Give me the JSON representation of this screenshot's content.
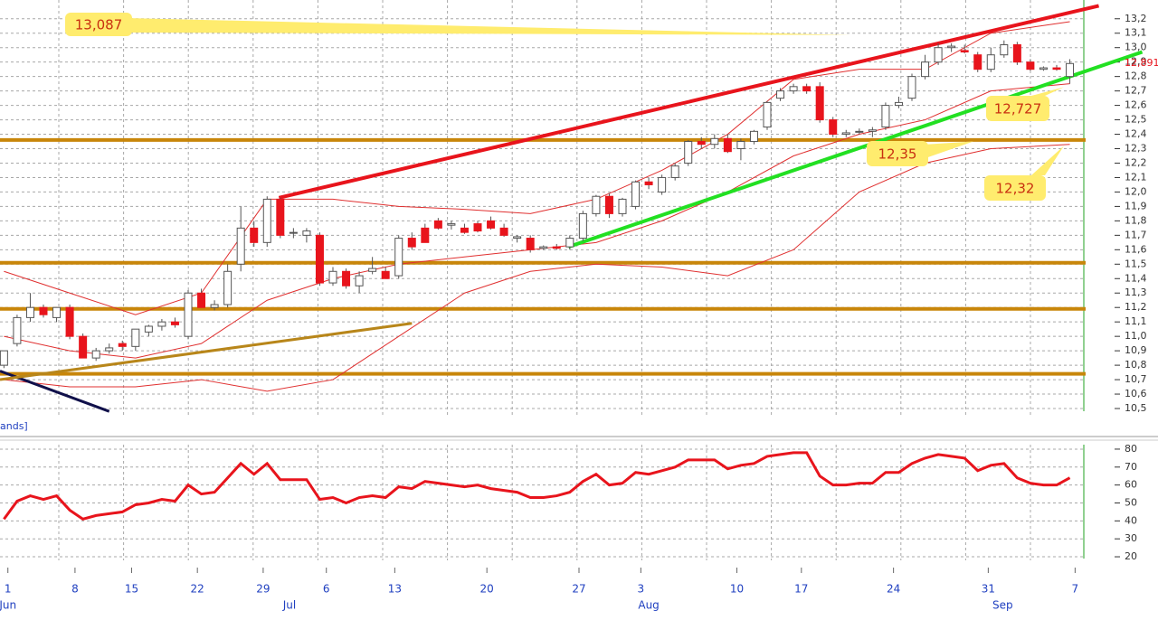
{
  "chart_data": {
    "type": "candlestick",
    "legend_fragment": "ands]",
    "up_color": "#ffffff",
    "down_color": "#e8141c",
    "outline_color": "#555555",
    "xlim": [
      -0.3,
      82.2
    ],
    "ylim": [
      10.45,
      13.33
    ],
    "yticks": [
      {
        "value": 13.2,
        "label": "13,2"
      },
      {
        "value": 13.1,
        "label": "13,1"
      },
      {
        "value": 13.0,
        "label": "13,0"
      },
      {
        "value": 12.9,
        "label": "12,9"
      },
      {
        "value": 12.8,
        "label": "12,8"
      },
      {
        "value": 12.7,
        "label": "12,7"
      },
      {
        "value": 12.6,
        "label": "12,6"
      },
      {
        "value": 12.5,
        "label": "12,5"
      },
      {
        "value": 12.4,
        "label": "12,4"
      },
      {
        "value": 12.3,
        "label": "12,3"
      },
      {
        "value": 12.2,
        "label": "12,2"
      },
      {
        "value": 12.1,
        "label": "12,1"
      },
      {
        "value": 12.0,
        "label": "12,0"
      },
      {
        "value": 11.9,
        "label": "11,9"
      },
      {
        "value": 11.8,
        "label": "11,8"
      },
      {
        "value": 11.7,
        "label": "11,7"
      },
      {
        "value": 11.6,
        "label": "11,6"
      },
      {
        "value": 11.5,
        "label": "11,5"
      },
      {
        "value": 11.4,
        "label": "11,4"
      },
      {
        "value": 11.3,
        "label": "11,3"
      },
      {
        "value": 11.2,
        "label": "11,2"
      },
      {
        "value": 11.1,
        "label": "11,1"
      },
      {
        "value": 11.0,
        "label": "11,0"
      },
      {
        "value": 10.9,
        "label": "10,9"
      },
      {
        "value": 10.8,
        "label": "10,8"
      },
      {
        "value": 10.7,
        "label": "10,7"
      },
      {
        "value": 10.6,
        "label": "10,6"
      },
      {
        "value": 10.5,
        "label": "10,5"
      }
    ],
    "xticks": [
      {
        "value": 0.3,
        "label": "1"
      },
      {
        "value": 5.4,
        "label": "8"
      },
      {
        "value": 9.7,
        "label": "15"
      },
      {
        "value": 14.7,
        "label": "22"
      },
      {
        "value": 19.7,
        "label": "29"
      },
      {
        "value": 24.5,
        "label": "6"
      },
      {
        "value": 29.7,
        "label": "13"
      },
      {
        "value": 36.7,
        "label": "20"
      },
      {
        "value": 43.7,
        "label": "27"
      },
      {
        "value": 48.4,
        "label": "3"
      },
      {
        "value": 55.7,
        "label": "10"
      },
      {
        "value": 60.6,
        "label": "17"
      },
      {
        "value": 67.6,
        "label": "24"
      },
      {
        "value": 74.8,
        "label": "31"
      },
      {
        "value": 81.4,
        "label": "7"
      }
    ],
    "months": [
      {
        "value": 0.3,
        "label": "Jun"
      },
      {
        "value": 21.7,
        "label": "Jul"
      },
      {
        "value": 49.0,
        "label": "Aug"
      },
      {
        "value": 75.9,
        "label": "Sep"
      }
    ],
    "candles": {
      "open": [
        10.8,
        10.95,
        11.13,
        11.2,
        11.13,
        11.2,
        11.0,
        10.85,
        10.9,
        10.95,
        10.93,
        11.03,
        11.07,
        11.1,
        11.0,
        11.3,
        11.2,
        11.22,
        11.5,
        11.75,
        11.65,
        11.95,
        11.72,
        11.7,
        11.7,
        11.37,
        11.45,
        11.35,
        11.45,
        11.45,
        11.42,
        11.68,
        11.75,
        11.8,
        11.77,
        11.75,
        11.78,
        11.8,
        11.75,
        11.68,
        11.68,
        11.61,
        11.62,
        11.62,
        11.68,
        11.85,
        11.97,
        11.85,
        11.9,
        12.07,
        12.0,
        12.1,
        12.2,
        12.35,
        12.33,
        12.37,
        12.3,
        12.35,
        12.45,
        12.65,
        12.7,
        12.73,
        12.73,
        12.5,
        12.4,
        12.42,
        12.42,
        12.45,
        12.6,
        12.65,
        12.8,
        12.9,
        13.0,
        12.98,
        12.95,
        12.85,
        12.95,
        13.02,
        12.9,
        12.85,
        12.86,
        12.8
      ],
      "high": [
        10.9,
        11.15,
        11.3,
        11.22,
        11.2,
        11.22,
        11.02,
        10.92,
        10.95,
        10.97,
        11.05,
        11.08,
        11.12,
        11.13,
        11.32,
        11.33,
        11.25,
        11.5,
        11.9,
        11.8,
        11.97,
        11.96,
        11.75,
        11.75,
        11.72,
        11.48,
        11.47,
        11.45,
        11.55,
        11.48,
        11.7,
        11.72,
        11.78,
        11.82,
        11.8,
        11.78,
        11.8,
        11.83,
        11.78,
        11.7,
        11.7,
        11.63,
        11.64,
        11.7,
        11.87,
        11.98,
        11.99,
        11.96,
        12.08,
        12.1,
        12.12,
        12.2,
        12.36,
        12.38,
        12.4,
        12.4,
        12.37,
        12.43,
        12.63,
        12.72,
        12.75,
        12.75,
        12.76,
        12.52,
        12.43,
        12.44,
        12.45,
        12.62,
        12.66,
        12.82,
        12.95,
        13.03,
        13.03,
        13.02,
        12.97,
        13.0,
        13.05,
        13.04,
        12.92,
        12.87,
        12.88,
        12.92
      ],
      "low": [
        10.78,
        10.93,
        11.1,
        11.13,
        11.1,
        10.98,
        10.85,
        10.83,
        10.88,
        10.9,
        10.9,
        11.0,
        11.04,
        11.06,
        10.98,
        11.2,
        11.18,
        11.2,
        11.45,
        11.62,
        11.62,
        11.68,
        11.68,
        11.65,
        11.35,
        11.35,
        11.33,
        11.3,
        11.43,
        11.4,
        11.4,
        11.6,
        11.65,
        11.74,
        11.74,
        11.71,
        11.72,
        11.74,
        11.69,
        11.65,
        11.58,
        11.6,
        11.6,
        11.6,
        11.66,
        11.83,
        11.82,
        11.83,
        11.88,
        12.02,
        11.98,
        12.08,
        12.18,
        12.3,
        12.3,
        12.27,
        12.22,
        12.33,
        12.43,
        12.63,
        12.68,
        12.68,
        12.48,
        12.38,
        12.38,
        12.4,
        12.38,
        12.43,
        12.58,
        12.63,
        12.78,
        12.88,
        12.97,
        12.96,
        12.83,
        12.83,
        12.93,
        12.88,
        12.84,
        12.84,
        12.84,
        12.75
      ],
      "close": [
        10.9,
        11.13,
        11.2,
        11.15,
        11.2,
        11.0,
        10.85,
        10.9,
        10.92,
        10.93,
        11.05,
        11.07,
        11.1,
        11.08,
        11.3,
        11.2,
        11.22,
        11.45,
        11.75,
        11.65,
        11.95,
        11.7,
        11.72,
        11.73,
        11.37,
        11.45,
        11.35,
        11.42,
        11.47,
        11.4,
        11.68,
        11.62,
        11.65,
        11.75,
        11.78,
        11.72,
        11.73,
        11.75,
        11.7,
        11.69,
        11.6,
        11.62,
        11.61,
        11.68,
        11.85,
        11.97,
        11.85,
        11.95,
        12.07,
        12.05,
        12.1,
        12.18,
        12.35,
        12.33,
        12.37,
        12.28,
        12.35,
        12.42,
        12.62,
        12.7,
        12.73,
        12.7,
        12.5,
        12.4,
        12.41,
        12.42,
        12.43,
        12.6,
        12.62,
        12.8,
        12.9,
        13.0,
        13.01,
        12.97,
        12.85,
        12.95,
        13.02,
        12.9,
        12.85,
        12.86,
        12.85,
        12.89
      ]
    },
    "bands": {
      "color": "#e03030",
      "x": [
        0,
        5,
        10,
        15,
        20,
        25,
        30,
        35,
        40,
        45,
        50,
        55,
        60,
        65,
        70,
        75,
        81
      ],
      "upper": [
        11.45,
        11.3,
        11.15,
        11.3,
        11.95,
        11.95,
        11.9,
        11.88,
        11.85,
        11.95,
        12.15,
        12.4,
        12.78,
        12.85,
        12.85,
        13.1,
        13.18
      ],
      "middle": [
        11.0,
        10.9,
        10.85,
        10.95,
        11.25,
        11.4,
        11.5,
        11.55,
        11.6,
        11.65,
        11.8,
        12.0,
        12.25,
        12.4,
        12.5,
        12.7,
        12.75
      ],
      "lower": [
        10.7,
        10.65,
        10.65,
        10.7,
        10.62,
        10.7,
        11.0,
        11.3,
        11.45,
        11.5,
        11.48,
        11.42,
        11.6,
        12.0,
        12.2,
        12.3,
        12.33
      ]
    },
    "levels": {
      "color": "#c8860a",
      "values": [
        12.36,
        11.51,
        11.19,
        10.74
      ]
    },
    "trendlines": [
      {
        "color": "#e8141c",
        "points": [
          [
            20.9,
            11.96
          ],
          [
            83.2,
            13.29
          ]
        ]
      },
      {
        "color": "#22e022",
        "points": [
          [
            42.9,
            11.62
          ],
          [
            86.5,
            12.97
          ]
        ]
      },
      {
        "color": "#10104a",
        "points": [
          [
            -0.3,
            10.76
          ],
          [
            8.0,
            10.48
          ]
        ]
      },
      {
        "color": "#b8861a",
        "points": [
          [
            -0.3,
            10.7
          ],
          [
            31.0,
            11.09
          ]
        ]
      }
    ],
    "last_price": {
      "value": 12.891,
      "label": "12,891",
      "color": "#e8141c"
    },
    "annotations": [
      {
        "value": 13.087,
        "label": "13,087"
      },
      {
        "value": 12.727,
        "label": "12,727"
      },
      {
        "value": 12.35,
        "label": "12,35"
      },
      {
        "value": 12.32,
        "label": "12,32"
      }
    ],
    "annotation_color": "#ffec6e",
    "annotation_text_color": "#c83010",
    "rsi": {
      "color": "#e8141c",
      "ylim": [
        17,
        83.5
      ],
      "yticks": [
        80,
        70,
        60,
        50,
        40,
        30,
        20
      ],
      "values": [
        41,
        51,
        54,
        52,
        54,
        46,
        41,
        43,
        44,
        45,
        49,
        50,
        52,
        51,
        60,
        55,
        56,
        64,
        72,
        66,
        72,
        63,
        63,
        63,
        52,
        53,
        50,
        53,
        54,
        53,
        59,
        58,
        62,
        61,
        60,
        59,
        60,
        58,
        57,
        56,
        53,
        53,
        54,
        56,
        62,
        66,
        60,
        61,
        67,
        66,
        68,
        70,
        74,
        74,
        74,
        69,
        71,
        72,
        76,
        77,
        78,
        78,
        65,
        60,
        60,
        61,
        61,
        67,
        67,
        72,
        75,
        77,
        76,
        75,
        68,
        71,
        72,
        64,
        61,
        60,
        60,
        64
      ]
    }
  }
}
